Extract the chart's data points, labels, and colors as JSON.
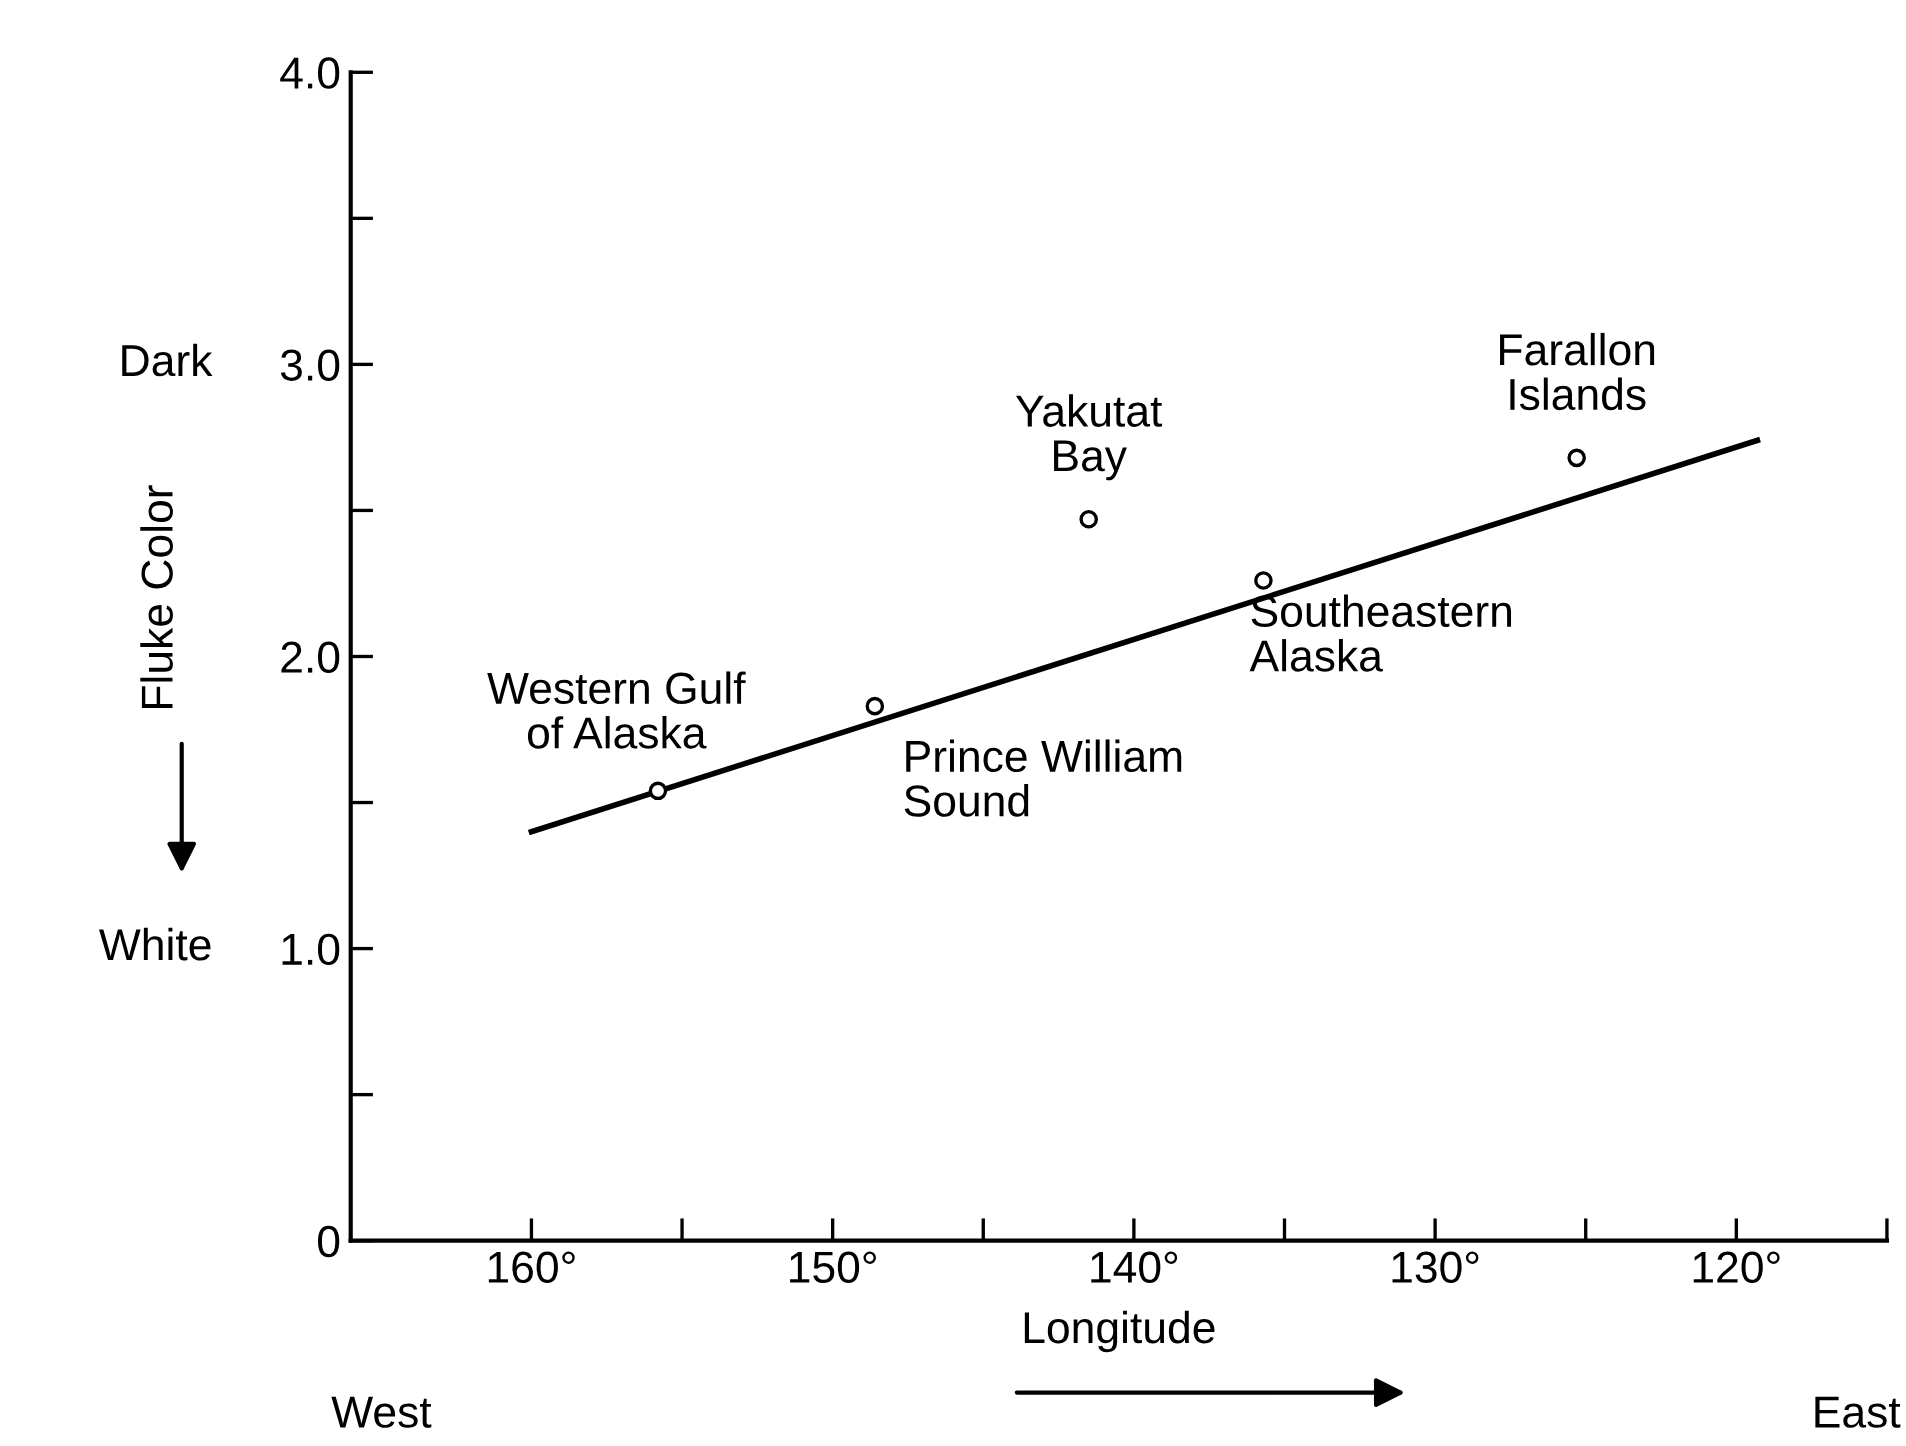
{
  "chart_data": {
    "type": "scatter",
    "xlabel": "Longitude",
    "ylabel": "Fluke Color",
    "xlim": [
      166,
      115
    ],
    "ylim": [
      0,
      4.0
    ],
    "xticks": [
      {
        "value": 160,
        "label": "160°"
      },
      {
        "value": 155,
        "label": null
      },
      {
        "value": 150,
        "label": "150°"
      },
      {
        "value": 145,
        "label": null
      },
      {
        "value": 140,
        "label": "140°"
      },
      {
        "value": 135,
        "label": null
      },
      {
        "value": 130,
        "label": "130°"
      },
      {
        "value": 125,
        "label": null
      },
      {
        "value": 120,
        "label": "120°"
      },
      {
        "value": 115,
        "label": null
      }
    ],
    "yticks": [
      0,
      {
        "value": 0.5,
        "label": null
      },
      {
        "value": 1.0,
        "label": "1.0"
      },
      {
        "value": 1.5,
        "label": null
      },
      {
        "value": 2.0,
        "label": "2.0"
      },
      {
        "value": 2.5,
        "label": null
      },
      {
        "value": 3.0,
        "label": "3.0"
      },
      {
        "value": 3.5,
        "label": null
      },
      {
        "value": 4.0,
        "label": "4.0"
      }
    ],
    "grid": false,
    "legend": false,
    "marker": "circle",
    "series": [
      {
        "color": "#000000",
        "x": [
          155.8,
          148.6,
          141.5,
          135.7,
          125.3
        ],
        "values": [
          1.54,
          1.83,
          2.47,
          2.26,
          2.68
        ]
      },
      {
        "type": "line",
        "color": "#000000",
        "marker": "none",
        "line_style": "solid",
        "x": [
          160,
          119.3
        ],
        "values": [
          1.4,
          2.74
        ]
      }
    ],
    "annotations": [
      {
        "text": "Western Gulf\nof Alaska",
        "x": 155.8,
        "y": 1.54
      },
      {
        "text": "Prince William\nSound",
        "x": 148.6,
        "y": 1.83
      },
      {
        "text": "Yakutat\nBay",
        "x": 141.5,
        "y": 2.47
      },
      {
        "text": "Southeastern\nAlaska",
        "x": 135.7,
        "y": 2.26
      },
      {
        "text": "Farallon\nIslands",
        "x": 125.3,
        "y": 2.68
      },
      "Dark",
      "White",
      "West",
      "East"
    ]
  }
}
